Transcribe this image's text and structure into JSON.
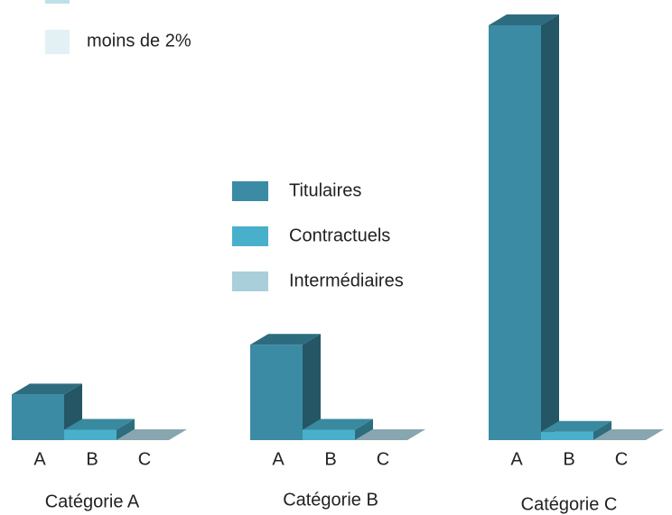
{
  "chart_data": {
    "type": "bar3d",
    "note": "moins de 2%",
    "note_color": "#e3f1f4",
    "groups": [
      "Catégorie A",
      "Catégorie B",
      "Catégorie C"
    ],
    "categories": [
      "A",
      "B",
      "C"
    ],
    "series": [
      {
        "name": "Titulaires",
        "color": "#3a8ba3",
        "values": [
          11,
          23,
          100
        ]
      },
      {
        "name": "Contractuels",
        "color": "#49b0cc",
        "values": [
          2.5,
          2.5,
          2
        ]
      },
      {
        "name": "Intermédiaires",
        "color": "#a9cfdb",
        "values": [
          0,
          0,
          0
        ]
      }
    ],
    "ylim": [
      0,
      100
    ]
  }
}
